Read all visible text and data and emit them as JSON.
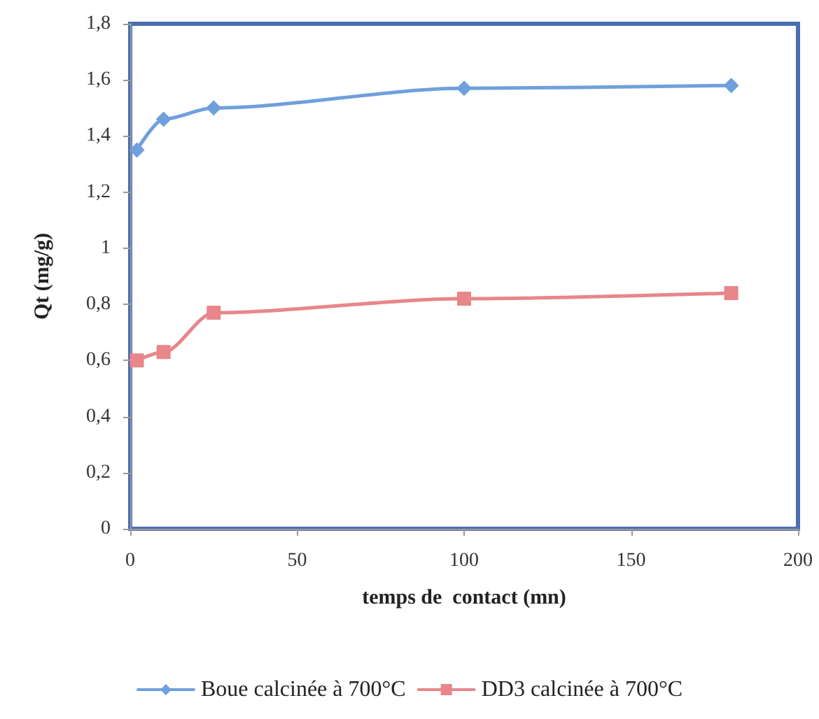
{
  "chart_data": {
    "type": "line",
    "xlabel": "temps de  contact (mn)",
    "ylabel": "Qt (mg/g)",
    "series": [
      {
        "name": "Boue calcinée à 700°C",
        "color": "#6fa0dc",
        "marker": "diamond",
        "x": [
          2,
          10,
          25,
          100,
          180
        ],
        "values": [
          1.35,
          1.46,
          1.5,
          1.57,
          1.58
        ]
      },
      {
        "name": "DD3 calcinée à 700°C",
        "color": "#e8868a",
        "marker": "square",
        "x": [
          2,
          10,
          25,
          100,
          180
        ],
        "values": [
          0.6,
          0.63,
          0.77,
          0.82,
          0.84
        ]
      }
    ],
    "xlim": [
      0,
      200
    ],
    "xticks": [
      0,
      50,
      100,
      150,
      200
    ],
    "ylim": [
      0,
      1.8
    ],
    "yticks": [
      0,
      {
        "value": 0.2,
        "label": "0,2"
      },
      {
        "value": 0.4,
        "label": "0,4"
      },
      {
        "value": 0.6,
        "label": "0,6"
      },
      {
        "value": 0.8,
        "label": "0,8"
      },
      1,
      {
        "value": 1.2,
        "label": "1,2"
      },
      {
        "value": 1.4,
        "label": "1,4"
      },
      {
        "value": 1.6,
        "label": "1,6"
      },
      {
        "value": 1.8,
        "label": "1,8"
      }
    ],
    "grid": false,
    "legend": "bottom",
    "line_style": "solid"
  }
}
